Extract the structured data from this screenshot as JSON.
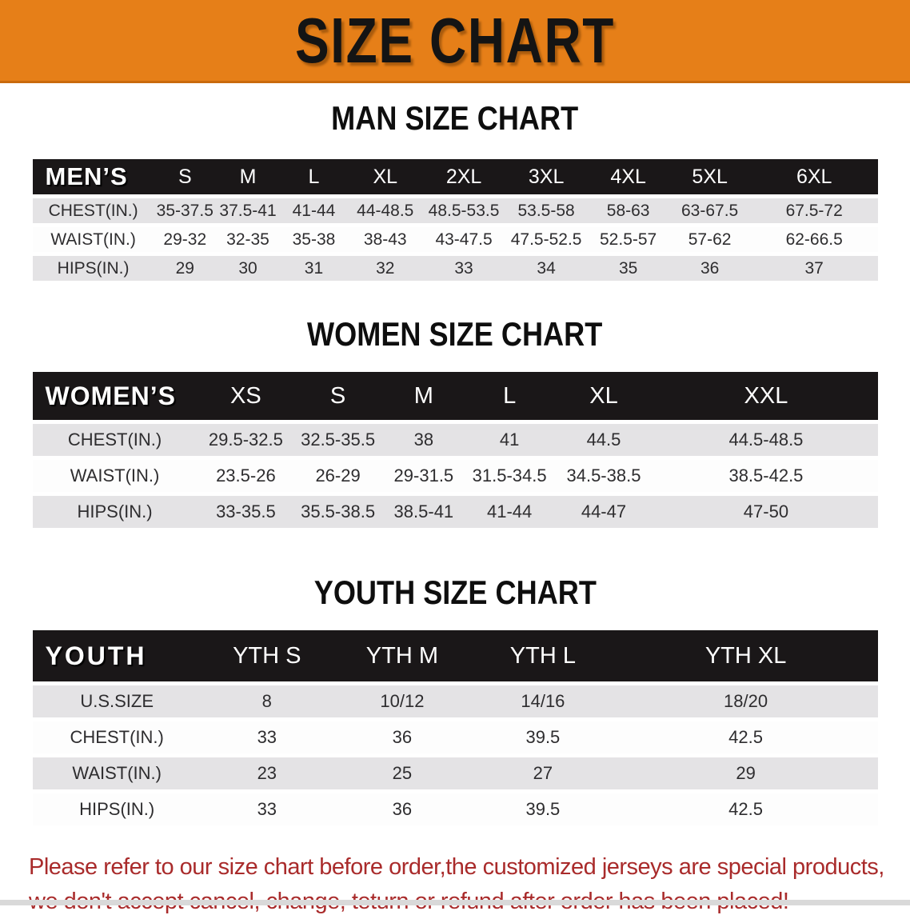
{
  "banner": {
    "title": "SIZE CHART"
  },
  "colors": {
    "banner_orange": "#E67F18",
    "header_band_black": "#1A1718",
    "row_stripe_gray": "#E4E3E5",
    "warning_red": "#A92B2B"
  },
  "men": {
    "section_title": "MAN SIZE CHART",
    "header_label": "MEN’S",
    "columns": [
      "S",
      "M",
      "L",
      "XL",
      "2XL",
      "3XL",
      "4XL",
      "5XL",
      "6XL"
    ],
    "rows": [
      {
        "label": "CHEST(IN.)",
        "values": [
          "35-37.5",
          "37.5-41",
          "41-44",
          "44-48.5",
          "48.5-53.5",
          "53.5-58",
          "58-63",
          "63-67.5",
          "67.5-72"
        ]
      },
      {
        "label": "WAIST(IN.)",
        "values": [
          "29-32",
          "32-35",
          "35-38",
          "38-43",
          "43-47.5",
          "47.5-52.5",
          "52.5-57",
          "57-62",
          "62-66.5"
        ]
      },
      {
        "label": "HIPS(IN.)",
        "values": [
          "29",
          "30",
          "31",
          "32",
          "33",
          "34",
          "35",
          "36",
          "37"
        ]
      }
    ]
  },
  "women": {
    "section_title": "WOMEN SIZE CHART",
    "header_label": "WOMEN’S",
    "columns": [
      "XS",
      "S",
      "M",
      "L",
      "XL",
      "XXL"
    ],
    "rows": [
      {
        "label": "CHEST(IN.)",
        "values": [
          "29.5-32.5",
          "32.5-35.5",
          "38",
          "41",
          "44.5",
          "44.5-48.5"
        ]
      },
      {
        "label": "WAIST(IN.)",
        "values": [
          "23.5-26",
          "26-29",
          "29-31.5",
          "31.5-34.5",
          "34.5-38.5",
          "38.5-42.5"
        ]
      },
      {
        "label": "HIPS(IN.)",
        "values": [
          "33-35.5",
          "35.5-38.5",
          "38.5-41",
          "41-44",
          "44-47",
          "47-50"
        ]
      }
    ]
  },
  "youth": {
    "section_title": "YOUTH SIZE CHART",
    "header_label": "YOUTH",
    "columns": [
      "YTH S",
      "YTH M",
      "YTH L",
      "YTH XL"
    ],
    "rows": [
      {
        "label": "U.S.SIZE",
        "values": [
          "8",
          "10/12",
          "14/16",
          "18/20"
        ]
      },
      {
        "label": "CHEST(IN.)",
        "values": [
          "33",
          "36",
          "39.5",
          "42.5"
        ]
      },
      {
        "label": "WAIST(IN.)",
        "values": [
          "23",
          "25",
          "27",
          "29"
        ]
      },
      {
        "label": "HIPS(IN.)",
        "values": [
          "33",
          "36",
          "39.5",
          "42.5"
        ]
      }
    ]
  },
  "footer": {
    "line1": "Please refer to our size chart before order,the customized jerseys are special products,",
    "line2": "we don't accept cancel, change, teturn or refund after order has been placed!"
  }
}
